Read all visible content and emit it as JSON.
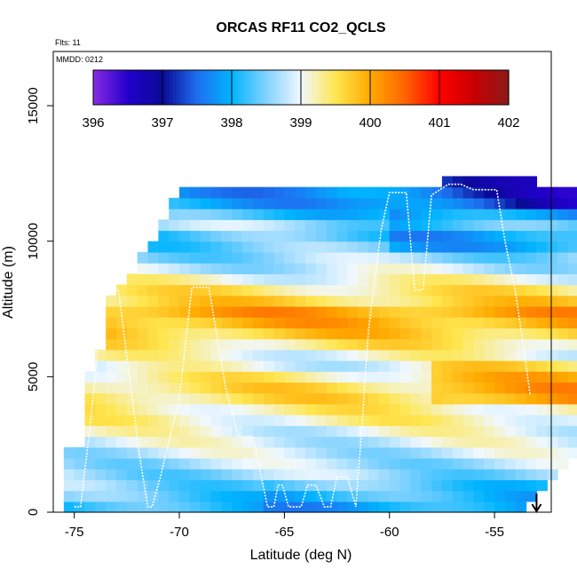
{
  "chart_data": {
    "type": "heatmap",
    "title": "ORCAS RF11 CO2_QCLS",
    "subtitle_flights": "Flts: 11",
    "subtitle_date": "MMDD: 0212",
    "xlabel": "Latitude (deg N)",
    "ylabel": "Altitude (m)",
    "xlim": [
      -76,
      -52.3
    ],
    "ylim": [
      0,
      17000
    ],
    "xticks": [
      -75,
      -70,
      -65,
      -60,
      -55
    ],
    "xtick_labels": [
      "-75",
      "-70",
      "-65",
      "-60",
      "-55"
    ],
    "yticks": [
      0,
      5000,
      10000,
      15000
    ],
    "ytick_labels": [
      "0",
      "5000",
      "10000",
      "15000"
    ],
    "colorbar": {
      "range": [
        396,
        402
      ],
      "ticks": [
        396,
        397,
        398,
        399,
        400,
        401,
        402
      ],
      "tick_labels": [
        "396",
        "397",
        "398",
        "399",
        "400",
        "401",
        "402"
      ],
      "stops": [
        {
          "v": 396.0,
          "c": "#8a2be2"
        },
        {
          "v": 396.5,
          "c": "#2200cc"
        },
        {
          "v": 397.0,
          "c": "#0a0a96"
        },
        {
          "v": 397.5,
          "c": "#1e6ef0"
        },
        {
          "v": 398.0,
          "c": "#00b4ff"
        },
        {
          "v": 398.5,
          "c": "#82d2ff"
        },
        {
          "v": 399.0,
          "c": "#f0f8ff"
        },
        {
          "v": 399.5,
          "c": "#ffe650"
        },
        {
          "v": 400.0,
          "c": "#ffaa00"
        },
        {
          "v": 400.5,
          "c": "#ff6400"
        },
        {
          "v": 401.0,
          "c": "#ff0000"
        },
        {
          "v": 401.5,
          "c": "#c80000"
        },
        {
          "v": 402.0,
          "c": "#8b1a1a"
        }
      ]
    },
    "grid": {
      "lat_start": -75.5,
      "dlat": 0.5,
      "alt_start": 0,
      "dalt": 400,
      "profile": [
        398.1,
        398.3,
        398.5,
        398.6,
        398.7,
        398.8,
        398.9,
        399.0,
        399.2,
        399.3,
        399.5,
        399.5,
        399.3,
        399.0,
        399.1,
        399.4,
        399.7,
        399.9,
        400.0,
        399.6,
        399.4,
        399.1,
        398.8,
        398.6,
        398.4,
        398.3,
        398.6,
        398.2,
        397.9,
        397.8
      ],
      "columns": [
        [
          0,
          2400
        ],
        [
          0,
          2400
        ],
        [
          0,
          5000
        ],
        [
          0,
          6000
        ],
        [
          0,
          8000
        ],
        [
          0,
          8400
        ],
        [
          0,
          8600
        ],
        [
          0,
          9600
        ],
        [
          0,
          9800
        ],
        [
          0,
          10800
        ],
        [
          0,
          11600
        ],
        [
          0,
          12000
        ],
        [
          0,
          12000
        ],
        [
          0,
          12000
        ],
        [
          0,
          12000
        ],
        [
          0,
          12000
        ],
        [
          0,
          12000
        ],
        [
          0,
          12000
        ],
        [
          0,
          12000
        ],
        [
          0,
          12000
        ],
        [
          0,
          12000
        ],
        [
          0,
          12000
        ],
        [
          0,
          12000
        ],
        [
          0,
          12000
        ],
        [
          0,
          12000
        ],
        [
          0,
          12000
        ],
        [
          0,
          12000
        ],
        [
          0,
          12000
        ],
        [
          0,
          12000
        ],
        [
          0,
          12000
        ],
        [
          0,
          12000
        ],
        [
          0,
          12000
        ],
        [
          0,
          12000
        ],
        [
          0,
          12000
        ],
        [
          0,
          12000
        ],
        [
          0,
          12000
        ],
        [
          0,
          12400
        ],
        [
          0,
          12400
        ],
        [
          0,
          12400
        ],
        [
          0,
          12400
        ],
        [
          0,
          12400
        ],
        [
          0,
          12400
        ],
        [
          0,
          12400
        ],
        [
          0,
          12400
        ],
        [
          400,
          12400
        ],
        [
          800,
          12000
        ],
        [
          1200,
          12000
        ],
        [
          1600,
          12000
        ],
        [
          2000,
          12000
        ],
        [
          2000,
          11200
        ],
        [
          2000,
          10400
        ]
      ]
    },
    "flight_track": {
      "lat": [
        -75.0,
        -74.7,
        -74.3,
        -73.9,
        -73.6,
        -72.9,
        -71.9,
        -71.5,
        -71.3,
        -70.9,
        -70.0,
        -69.4,
        -68.6,
        -67.8,
        -67.2,
        -66.5,
        -65.8,
        -65.5,
        -65.3,
        -65.1,
        -64.8,
        -64.2,
        -63.9,
        -63.5,
        -63.1,
        -62.8,
        -62.5,
        -62.0,
        -61.6,
        -61.3,
        -61.0,
        -60.4,
        -60.0,
        -59.6,
        -59.2,
        -58.8,
        -58.4,
        -58.0,
        -57.6,
        -57.2,
        -56.6,
        -56.0,
        -55.4,
        -54.9,
        -54.5,
        -54.0,
        -53.6,
        -53.3
      ],
      "alt": [
        200,
        200,
        2800,
        5800,
        8300,
        8200,
        2100,
        200,
        200,
        1300,
        4200,
        8300,
        8300,
        4600,
        2800,
        2800,
        200,
        200,
        1000,
        1000,
        200,
        200,
        1000,
        1000,
        200,
        200,
        1300,
        1300,
        200,
        3300,
        6700,
        10400,
        11800,
        11800,
        11800,
        8200,
        8200,
        11700,
        11900,
        12100,
        12100,
        11900,
        11900,
        11900,
        10000,
        8100,
        6000,
        4300
      ]
    },
    "arrow_lat": -53.0
  }
}
